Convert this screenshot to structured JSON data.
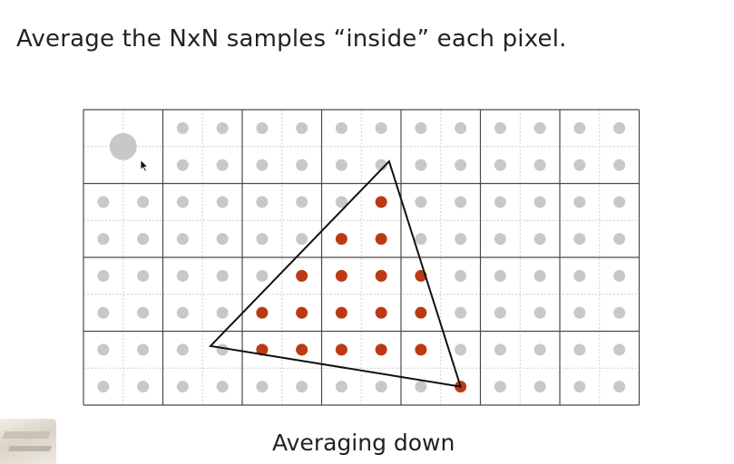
{
  "slide": {
    "heading": "Average the NxN samples “inside” each pixel.",
    "caption": "Averaging down"
  },
  "grid": {
    "pixel_cols": 7,
    "pixel_rows": 4,
    "samples_per_pixel": 2,
    "highlighted_pixel": [
      0,
      0
    ]
  },
  "triangle": {
    "vertices": [
      [
        3.85,
        0.7
      ],
      [
        1.6,
        3.2
      ],
      [
        4.75,
        3.75
      ]
    ]
  },
  "colors": {
    "inside_sample": "#bb3a15",
    "outside_sample": "#c8c8c8",
    "pixel_line": "#4a4a4a",
    "sample_line": "#cfcfcf",
    "triangle_edge": "#111111",
    "text": "#222222"
  },
  "icons": {
    "cursor": "mouse-pointer-icon"
  }
}
